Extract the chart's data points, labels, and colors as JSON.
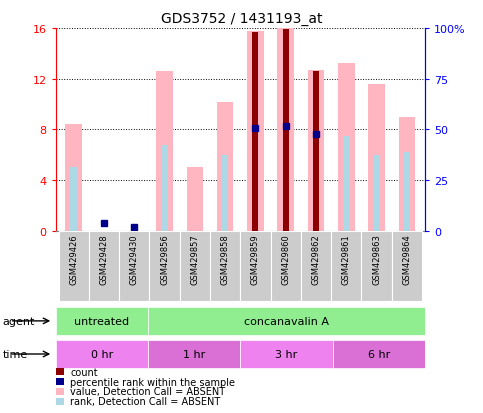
{
  "title": "GDS3752 / 1431193_at",
  "samples": [
    "GSM429426",
    "GSM429428",
    "GSM429430",
    "GSM429856",
    "GSM429857",
    "GSM429858",
    "GSM429859",
    "GSM429860",
    "GSM429862",
    "GSM429861",
    "GSM429863",
    "GSM429864"
  ],
  "pink_bar_values": [
    8.4,
    0.0,
    0.0,
    12.6,
    5.0,
    10.2,
    15.8,
    16.0,
    12.7,
    13.2,
    11.6,
    9.0
  ],
  "red_bar_values": [
    0.0,
    0.0,
    0.0,
    0.0,
    0.0,
    0.0,
    15.7,
    15.95,
    12.6,
    0.0,
    0.0,
    0.0
  ],
  "blue_dot_values": [
    0.0,
    0.6,
    0.3,
    0.0,
    0.0,
    0.0,
    8.1,
    8.3,
    7.6,
    0.0,
    0.0,
    0.0
  ],
  "light_blue_values": [
    5.0,
    0.0,
    0.0,
    6.8,
    0.0,
    6.0,
    0.0,
    0.0,
    0.0,
    7.5,
    6.0,
    6.2
  ],
  "ylim": [
    0,
    16
  ],
  "yticks_left": [
    0,
    4,
    8,
    12,
    16
  ],
  "yticks_right_labels": [
    "0",
    "25",
    "50",
    "75",
    "100%"
  ],
  "pink_color": "#FFB6C1",
  "red_color": "#8B0000",
  "blue_color": "#00008B",
  "light_blue_color": "#ADD8E6",
  "legend_items": [
    {
      "color": "#8B0000",
      "label": "count"
    },
    {
      "color": "#00008B",
      "label": "percentile rank within the sample"
    },
    {
      "color": "#FFB6C1",
      "label": "value, Detection Call = ABSENT"
    },
    {
      "color": "#ADD8E6",
      "label": "rank, Detection Call = ABSENT"
    }
  ],
  "agent_groups": [
    {
      "label": "untreated",
      "start": 0,
      "end": 3,
      "color": "#90EE90"
    },
    {
      "label": "concanavalin A",
      "start": 3,
      "end": 12,
      "color": "#90EE90"
    }
  ],
  "time_groups": [
    {
      "label": "0 hr",
      "start": 0,
      "end": 3,
      "color": "#EE82EE"
    },
    {
      "label": "1 hr",
      "start": 3,
      "end": 6,
      "color": "#DA70D6"
    },
    {
      "label": "3 hr",
      "start": 6,
      "end": 9,
      "color": "#EE82EE"
    },
    {
      "label": "6 hr",
      "start": 9,
      "end": 12,
      "color": "#DA70D6"
    }
  ]
}
